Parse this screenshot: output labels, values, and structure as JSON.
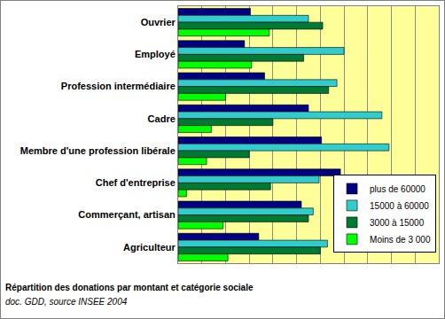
{
  "chart_data": {
    "type": "bar",
    "orientation": "horizontal",
    "title": "Répartition des donations par montant et catégorie sociale",
    "subtitle": "doc. GDD, source INSEE 2004",
    "categories": [
      "Ouvrier",
      "Employé",
      "Profession intermédiaire",
      "Cadre",
      "Membre d'une profession libérale",
      "Chef d'entreprise",
      "Commerçant, artisan",
      "Agriculteur"
    ],
    "series": [
      {
        "name": "plus de 60000",
        "color": "#000080",
        "values": [
          3.05,
          2.8,
          3.65,
          5.5,
          6.05,
          6.85,
          5.2,
          3.4
        ]
      },
      {
        "name": "15000 à 60000",
        "color": "#33cccc",
        "values": [
          5.5,
          7.0,
          6.7,
          8.6,
          8.9,
          5.95,
          5.7,
          6.3
        ]
      },
      {
        "name": "3000 à 15000",
        "color": "#007a33",
        "values": [
          6.1,
          5.3,
          6.35,
          4.0,
          3.0,
          3.9,
          5.5,
          6.0
        ]
      },
      {
        "name": "Moins de 3 000",
        "color": "#00ff00",
        "values": [
          3.85,
          3.1,
          2.0,
          1.4,
          1.2,
          0.35,
          1.9,
          2.1
        ]
      }
    ],
    "xlim": [
      0,
      11
    ],
    "xticks": [
      0,
      1,
      2,
      3,
      4,
      5,
      6,
      7,
      8,
      9,
      10,
      11
    ],
    "grid": true,
    "legend": "lower right",
    "tick_labels": "y"
  }
}
